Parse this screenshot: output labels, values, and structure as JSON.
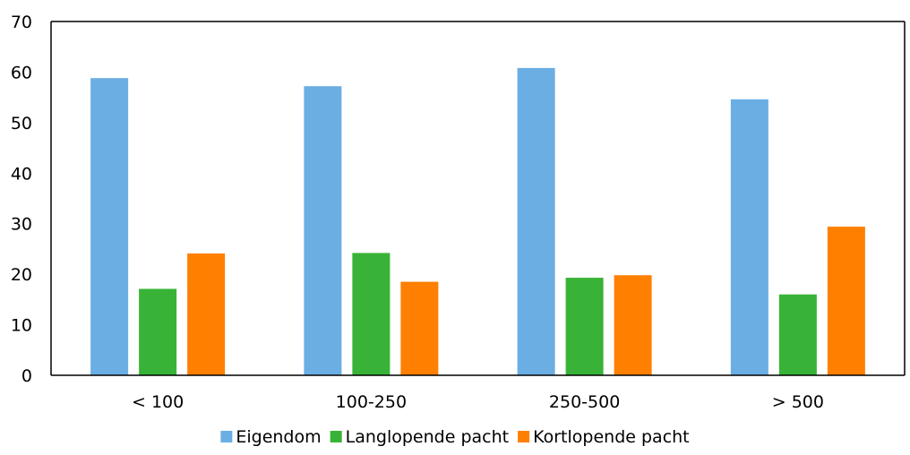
{
  "chart_data": {
    "type": "bar",
    "title": "",
    "xlabel": "",
    "ylabel": "",
    "ylim": [
      0,
      70
    ],
    "yticks": [
      0,
      10,
      20,
      30,
      40,
      50,
      60,
      70
    ],
    "grid": false,
    "legend_position": "bottom",
    "categories": [
      "< 100",
      "100-250",
      "250-500",
      "> 500"
    ],
    "series": [
      {
        "name": "Eigendom",
        "color": "#6aaee3",
        "values": [
          58.8,
          57.2,
          60.8,
          54.6
        ]
      },
      {
        "name": "Langlopende pacht",
        "color": "#38b337",
        "values": [
          17.1,
          24.2,
          19.3,
          16.0
        ]
      },
      {
        "name": "Kortlopende pacht",
        "color": "#ff7f00",
        "values": [
          24.1,
          18.5,
          19.8,
          29.4
        ]
      }
    ]
  }
}
